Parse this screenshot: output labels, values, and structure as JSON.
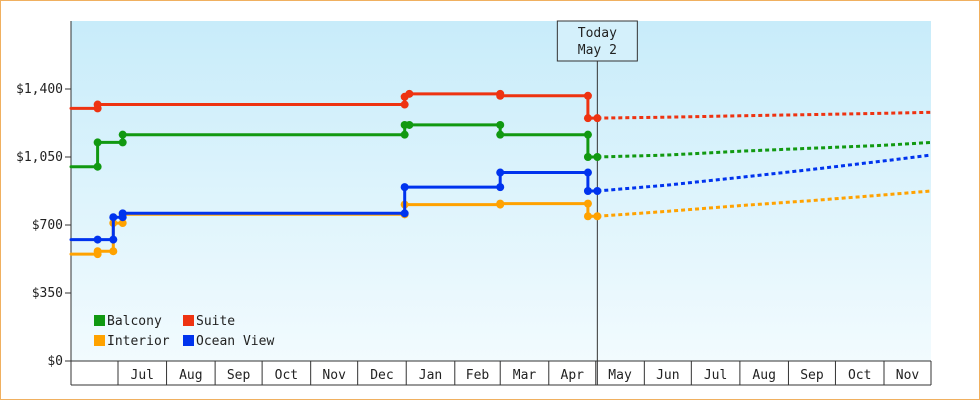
{
  "chart_data": {
    "type": "line",
    "step": true,
    "x_axis": {
      "type": "date",
      "range": [
        "2015-06-01",
        "2016-12-01"
      ],
      "month_labels": [
        "Jul",
        "Aug",
        "Sep",
        "Oct",
        "Nov",
        "Dec",
        "Jan",
        "Feb",
        "Mar",
        "Apr",
        "May",
        "Jun",
        "Jul",
        "Aug",
        "Sep",
        "Oct",
        "Nov"
      ]
    },
    "y_axis": {
      "ylim": [
        0,
        1750
      ],
      "ticks": [
        {
          "value": 0,
          "label": "$0"
        },
        {
          "value": 350,
          "label": "$350"
        },
        {
          "value": 700,
          "label": "$700"
        },
        {
          "value": 1050,
          "label": "$1,050"
        },
        {
          "value": 1400,
          "label": "$1,400"
        }
      ]
    },
    "grid": false,
    "legend_placement": "bottom-left",
    "today": {
      "line1": "Today",
      "line2": "May 2",
      "date": "2016-05-02"
    },
    "series": [
      {
        "name": "Balcony",
        "color": "#119911",
        "historical": [
          [
            "2015-06-01",
            1000
          ],
          [
            "2015-06-18",
            1000
          ],
          [
            "2015-06-18",
            1125
          ],
          [
            "2015-07-04",
            1125
          ],
          [
            "2015-07-04",
            1165
          ],
          [
            "2015-12-31",
            1165
          ],
          [
            "2015-12-31",
            1215
          ],
          [
            "2016-01-03",
            1215
          ],
          [
            "2016-03-01",
            1215
          ],
          [
            "2016-03-01",
            1165
          ],
          [
            "2016-04-26",
            1165
          ],
          [
            "2016-04-26",
            1050
          ],
          [
            "2016-05-02",
            1050
          ]
        ],
        "forecast": [
          [
            "2016-05-02",
            1050
          ],
          [
            "2016-06-15",
            1060
          ],
          [
            "2016-08-01",
            1080
          ],
          [
            "2016-09-15",
            1095
          ],
          [
            "2016-11-01",
            1110
          ],
          [
            "2016-12-01",
            1125
          ]
        ]
      },
      {
        "name": "Suite",
        "color": "#ee3311",
        "historical": [
          [
            "2015-06-01",
            1300
          ],
          [
            "2015-06-18",
            1300
          ],
          [
            "2015-06-18",
            1320
          ],
          [
            "2015-12-31",
            1320
          ],
          [
            "2015-12-31",
            1360
          ],
          [
            "2016-01-03",
            1375
          ],
          [
            "2016-03-01",
            1375
          ],
          [
            "2016-03-01",
            1365
          ],
          [
            "2016-04-26",
            1365
          ],
          [
            "2016-04-26",
            1250
          ],
          [
            "2016-05-02",
            1250
          ]
        ],
        "forecast": [
          [
            "2016-05-02",
            1250
          ],
          [
            "2016-06-15",
            1255
          ],
          [
            "2016-08-01",
            1262
          ],
          [
            "2016-09-15",
            1268
          ],
          [
            "2016-11-01",
            1275
          ],
          [
            "2016-12-01",
            1280
          ]
        ]
      },
      {
        "name": "Interior",
        "color": "#ffa200",
        "historical": [
          [
            "2015-06-01",
            550
          ],
          [
            "2015-06-18",
            550
          ],
          [
            "2015-06-18",
            565
          ],
          [
            "2015-06-28",
            565
          ],
          [
            "2015-06-28",
            710
          ],
          [
            "2015-07-04",
            710
          ],
          [
            "2015-07-04",
            755
          ],
          [
            "2015-12-31",
            755
          ],
          [
            "2015-12-31",
            805
          ],
          [
            "2016-03-01",
            805
          ],
          [
            "2016-03-01",
            810
          ],
          [
            "2016-04-26",
            810
          ],
          [
            "2016-04-26",
            745
          ],
          [
            "2016-05-02",
            745
          ]
        ],
        "forecast": [
          [
            "2016-05-02",
            745
          ],
          [
            "2016-06-15",
            770
          ],
          [
            "2016-08-01",
            800
          ],
          [
            "2016-09-15",
            825
          ],
          [
            "2016-11-01",
            855
          ],
          [
            "2016-12-01",
            875
          ]
        ]
      },
      {
        "name": "Ocean View",
        "color": "#0033ee",
        "historical": [
          [
            "2015-06-01",
            625
          ],
          [
            "2015-06-18",
            625
          ],
          [
            "2015-06-28",
            625
          ],
          [
            "2015-06-28",
            740
          ],
          [
            "2015-07-04",
            740
          ],
          [
            "2015-07-04",
            760
          ],
          [
            "2015-12-31",
            760
          ],
          [
            "2015-12-31",
            895
          ],
          [
            "2016-03-01",
            895
          ],
          [
            "2016-03-01",
            970
          ],
          [
            "2016-04-26",
            970
          ],
          [
            "2016-04-26",
            875
          ],
          [
            "2016-05-02",
            875
          ]
        ],
        "forecast": [
          [
            "2016-05-02",
            875
          ],
          [
            "2016-06-15",
            905
          ],
          [
            "2016-08-01",
            945
          ],
          [
            "2016-09-15",
            985
          ],
          [
            "2016-11-01",
            1030
          ],
          [
            "2016-12-01",
            1060
          ]
        ]
      }
    ]
  }
}
